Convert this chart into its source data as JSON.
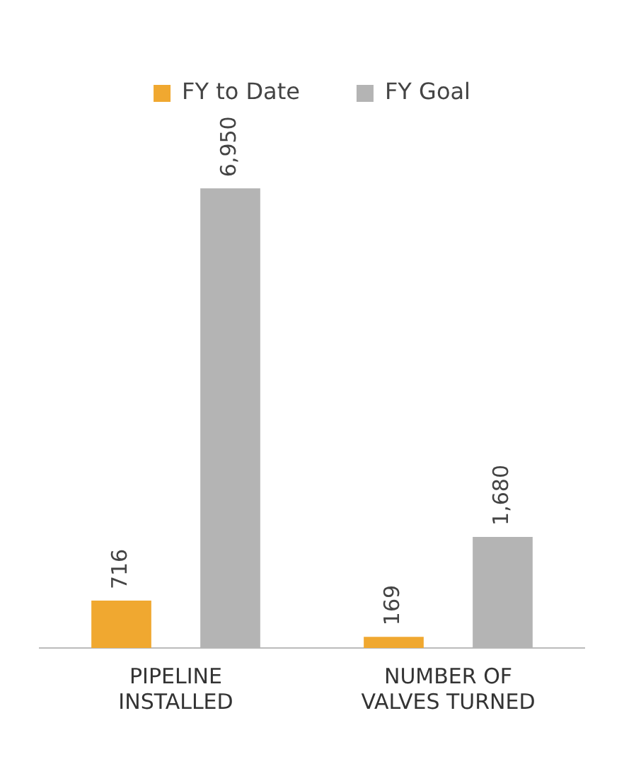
{
  "chart_data": {
    "type": "bar",
    "categories": [
      "PIPELINE INSTALLED",
      "NUMBER OF VALVES TURNED"
    ],
    "series": [
      {
        "name": "FY to Date",
        "color": "#f0a830",
        "values": [
          716,
          169
        ],
        "value_labels": [
          "716",
          "169"
        ]
      },
      {
        "name": "FY Goal",
        "color": "#b4b4b4",
        "values": [
          6950,
          1680
        ],
        "value_labels": [
          "6,950",
          "1,680"
        ]
      }
    ],
    "legend": "top",
    "grid": false
  }
}
